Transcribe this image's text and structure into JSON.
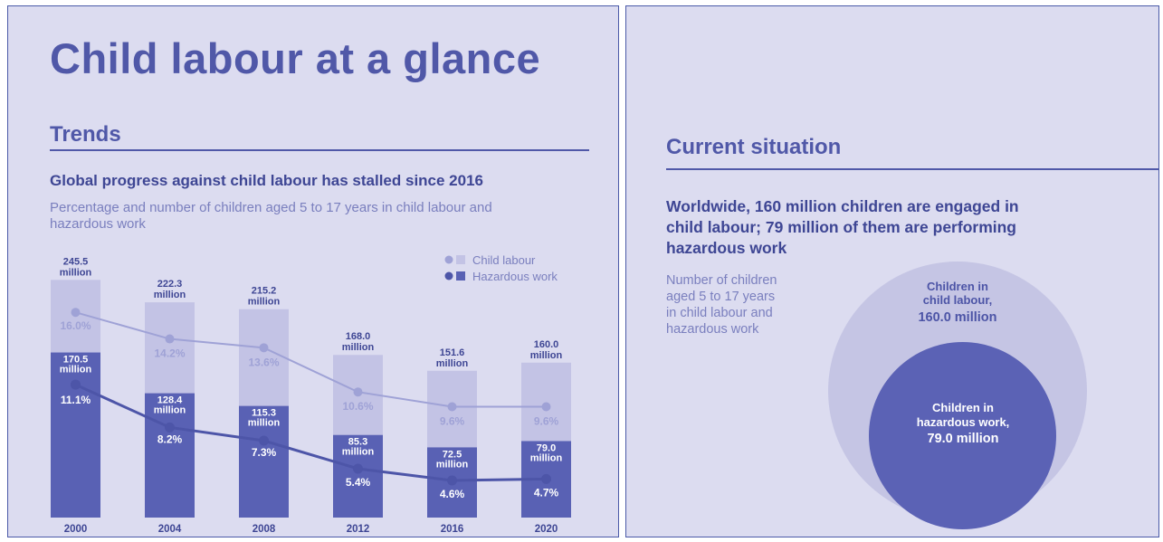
{
  "colors": {
    "panel_bg": "#dcdcf0",
    "accent": "#5058a8",
    "child_labour_bar": "#c3c3e5",
    "hazardous_bar": "#5961b4",
    "child_labour_line": "#9fa2d6",
    "hazardous_line": "#4d55a8"
  },
  "left_panel": {
    "title": "Child labour at a glance",
    "section_title": "Trends",
    "headline": "Global progress against child labour has stalled since 2016",
    "subtitle_line1": "Percentage and number of children aged 5 to 17 years in child labour and",
    "subtitle_line2": "hazardous work"
  },
  "chart_data": {
    "type": "bar",
    "categories": [
      "2000",
      "2004",
      "2008",
      "2012",
      "2016",
      "2020"
    ],
    "series": [
      {
        "name": "Child labour",
        "values": [
          245.5,
          222.3,
          215.2,
          168.0,
          151.6,
          160.0
        ],
        "value_labels": [
          "245.5",
          "222.3",
          "215.2",
          "168.0",
          "151.6",
          "160.0"
        ],
        "percent": [
          16.0,
          14.2,
          13.6,
          10.6,
          9.6,
          9.6
        ],
        "percent_labels": [
          "16.0%",
          "14.2%",
          "13.6%",
          "10.6%",
          "9.6%",
          "9.6%"
        ]
      },
      {
        "name": "Hazardous work",
        "values": [
          170.5,
          128.4,
          115.3,
          85.3,
          72.5,
          79.0
        ],
        "value_labels": [
          "170.5",
          "128.4",
          "115.3",
          "85.3",
          "72.5",
          "79.0"
        ],
        "percent": [
          11.1,
          8.2,
          7.3,
          5.4,
          4.6,
          4.7
        ],
        "percent_labels": [
          "11.1%",
          "8.2%",
          "7.3%",
          "5.4%",
          "4.6%",
          "4.7%"
        ]
      }
    ],
    "unit_label": "million",
    "legend": [
      "Child labour",
      "Hazardous work"
    ],
    "legend_position": "top-right",
    "ylim": [
      0,
      260
    ],
    "percent_lim": [
      0,
      20
    ],
    "grid": false
  },
  "right_panel": {
    "section_title": "Current situation",
    "headline_line1": "Worldwide, 160 million children are engaged in",
    "headline_line2": "child labour; 79 million of them are performing",
    "headline_line3": "hazardous work",
    "caption_line1": "Number of children",
    "caption_line2": "aged 5 to 17 years",
    "caption_line3": "in child labour and",
    "caption_line4": "hazardous work",
    "outer_label_line1": "Children in",
    "outer_label_line2": "child labour,",
    "outer_label_line3": "160.0 million",
    "inner_label_line1": "Children in",
    "inner_label_line2": "hazardous work,",
    "inner_label_line3": "79.0 million",
    "outer_value": 160.0,
    "inner_value": 79.0
  }
}
